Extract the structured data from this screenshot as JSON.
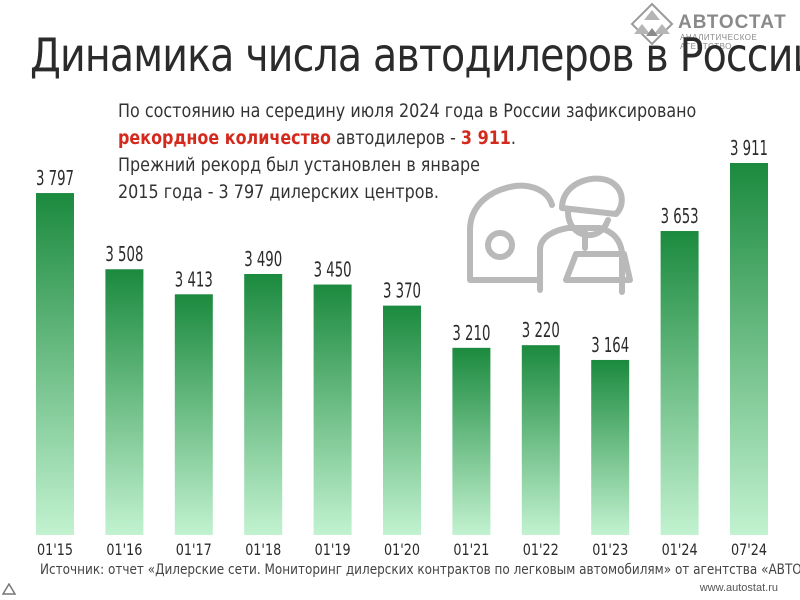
{
  "logo": {
    "brand": "АВТОСТАТ",
    "subtitle": "АНАЛИТИЧЕСКОЕ АГЕНТСТВО"
  },
  "header": {
    "title": "Динамика числа автодилеров в России"
  },
  "note": {
    "line1": "По состоянию на середину июля 2024 года в России зафиксировано",
    "line2_highlight": "рекордное количество",
    "line2_text": " автодилеров - ",
    "line2_value": "3 911",
    "line2_end": ".",
    "line3": "Прежний рекорд был установлен в январе",
    "line4": "2015 года - 3 797 дилерских центров."
  },
  "footer": {
    "source": "Источник: отчет «Дилерские сети. Мониторинг дилерских контрактов по легковым автомобилям» от агентства «АВТОСТАТ»",
    "site": "www.autostat.ru"
  },
  "icons": {
    "illustration": "dealer-person-car-icon",
    "logo": "autostat-diamond-logo-icon"
  },
  "colors": {
    "bar_top": "#1b8a3e",
    "bar_bottom": "#c2f2d0",
    "highlight": "#d42a1e"
  },
  "chart_data": {
    "type": "bar",
    "title": "Динамика числа автодилеров в России",
    "categories": [
      "01'15",
      "01'16",
      "01'17",
      "01'18",
      "01'19",
      "01'20",
      "01'21",
      "01'22",
      "01'23",
      "01'24",
      "07'24"
    ],
    "values": [
      3797,
      3508,
      3413,
      3490,
      3450,
      3370,
      3210,
      3220,
      3164,
      3653,
      3911
    ],
    "value_labels": [
      "3 797",
      "3 508",
      "3 413",
      "3 490",
      "3 450",
      "3 370",
      "3 210",
      "3 220",
      "3 164",
      "3 653",
      "3 911"
    ],
    "xlabel": "",
    "ylabel": "",
    "grid": false
  }
}
